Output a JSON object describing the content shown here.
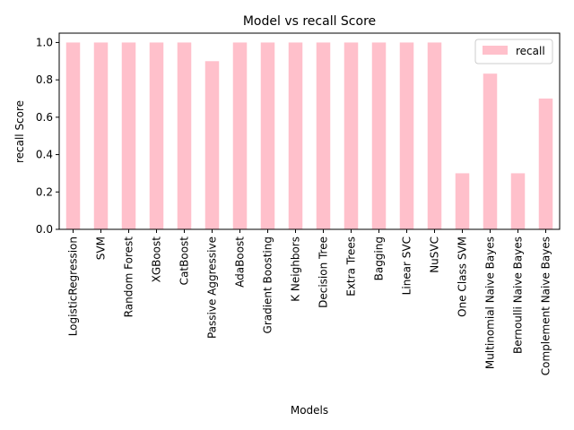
{
  "chart_data": {
    "type": "bar",
    "title": "Model vs recall Score",
    "xlabel": "Models",
    "ylabel": "recall Score",
    "categories": [
      "LogisticRegression",
      "SVM",
      "Random Forest",
      "XGBoost",
      "CatBoost",
      "Passive Aggressive",
      "AdaBoost",
      "Gradient Boosting",
      "K Neighbors",
      "Decision Tree",
      "Extra Trees",
      "Bagging",
      "Linear SVC",
      "NuSVC",
      "One Class SVM",
      "Multinomial Naive Bayes",
      "Bernoulli Naive Bayes",
      "Complement Naive Bayes"
    ],
    "series": [
      {
        "name": "recall",
        "color": "#ffc0cb",
        "values": [
          1.0,
          1.0,
          1.0,
          1.0,
          1.0,
          0.9,
          1.0,
          1.0,
          1.0,
          1.0,
          1.0,
          1.0,
          1.0,
          1.0,
          0.3,
          0.8333,
          0.3,
          0.7
        ]
      }
    ],
    "ylim": [
      0,
      1.05
    ],
    "yticks": [
      "0.0",
      "0.2",
      "0.4",
      "0.6",
      "0.8",
      "1.0"
    ],
    "grid": false,
    "legend_position": "upper right"
  }
}
